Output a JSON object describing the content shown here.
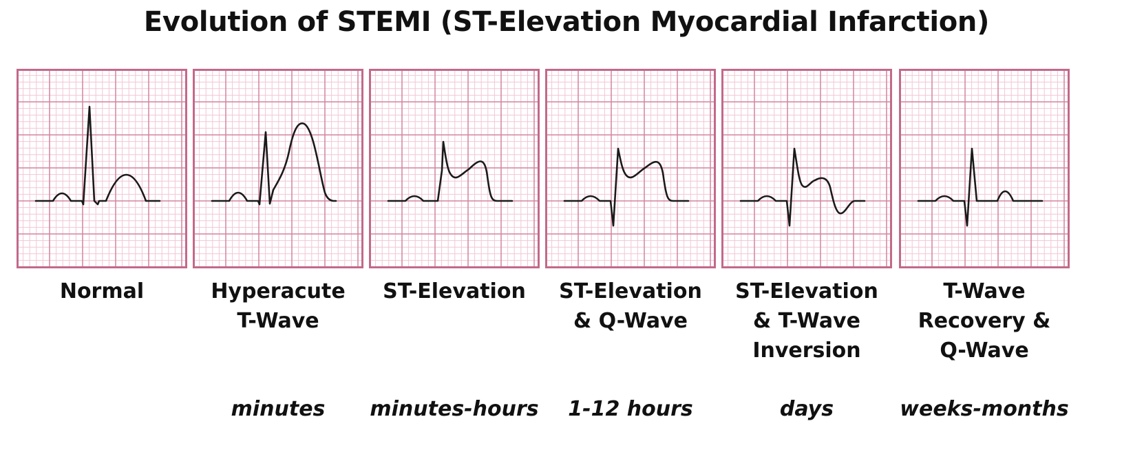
{
  "title": "Evolution of STEMI (ST-Elevation Myocardial Infarction)",
  "colors": {
    "grid_minor": "#f2c6d6",
    "grid_major": "#d3849f",
    "frame": "#c2698a",
    "paper": "#ffffff",
    "trace": "#1a1a1a"
  },
  "stages": [
    {
      "label": "Normal",
      "duration": ""
    },
    {
      "label": "Hyperacute\nT-Wave",
      "duration": "minutes"
    },
    {
      "label": "ST-Elevation",
      "duration": "minutes-hours"
    },
    {
      "label": "ST-Elevation\n& Q-Wave",
      "duration": "1-12 hours"
    },
    {
      "label": "ST-Elevation\n& T-Wave\nInversion",
      "duration": "days"
    },
    {
      "label": "T-Wave\nRecovery &\nQ-Wave",
      "duration": "weeks-months"
    }
  ]
}
